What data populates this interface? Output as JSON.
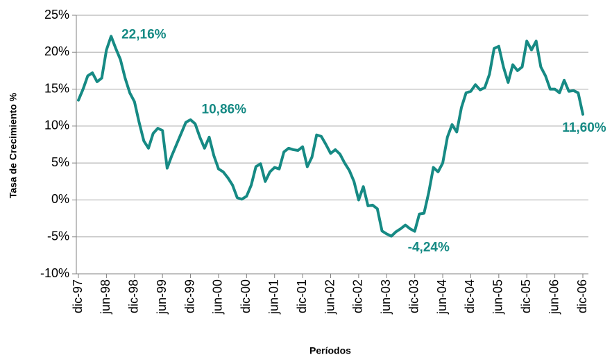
{
  "chart_data": {
    "type": "line",
    "y_label": "Tasa de Crecimiento %",
    "x_label": "Períodos",
    "categories": [
      "dic-97",
      null,
      null,
      null,
      null,
      null,
      "jun-98",
      null,
      null,
      null,
      null,
      null,
      "dic-98",
      null,
      null,
      null,
      null,
      null,
      "jun-99",
      null,
      null,
      null,
      null,
      null,
      "dic-99",
      null,
      null,
      null,
      null,
      null,
      "jun-00",
      null,
      null,
      null,
      null,
      null,
      "dic-00",
      null,
      null,
      null,
      null,
      null,
      "jun-01",
      null,
      null,
      null,
      null,
      null,
      "dic-01",
      null,
      null,
      null,
      null,
      null,
      "jun-02",
      null,
      null,
      null,
      null,
      null,
      "dic-02",
      null,
      null,
      null,
      null,
      null,
      "jun-03",
      null,
      null,
      null,
      null,
      null,
      "dic-03",
      null,
      null,
      null,
      null,
      null,
      "jun-04",
      null,
      null,
      null,
      null,
      null,
      "dic-04",
      null,
      null,
      null,
      null,
      null,
      "jun-05",
      null,
      null,
      null,
      null,
      null,
      "dic-05",
      null,
      null,
      null,
      null,
      null,
      "jun-06",
      null,
      null,
      null,
      null,
      null,
      "dic-06"
    ],
    "series": [
      {
        "color": "#168a84",
        "values": [
          13.5,
          15,
          16.8,
          17.2,
          16,
          16.5,
          20.3,
          22.16,
          20.5,
          19,
          16.5,
          14.5,
          13.3,
          10.5,
          8,
          7,
          9,
          9.7,
          9.4,
          4.3,
          6,
          7.5,
          9,
          10.5,
          10.86,
          10.3,
          8.5,
          7,
          8.5,
          6,
          4.2,
          3.8,
          3,
          2,
          0.3,
          0.1,
          0.5,
          2,
          4.5,
          4.9,
          2.5,
          3.8,
          4.4,
          4.2,
          6.5,
          7,
          6.8,
          6.7,
          7.2,
          4.5,
          5.8,
          8.8,
          8.6,
          7.5,
          6.3,
          6.8,
          6.2,
          5,
          4,
          2.5,
          0,
          1.8,
          -0.8,
          -0.7,
          -1.2,
          -4.2,
          -4.6,
          -4.9,
          -4.3,
          -3.9,
          -3.4,
          -3.9,
          -4.24,
          -1.9,
          -1.8,
          1,
          4.4,
          3.8,
          5,
          8.5,
          10.2,
          9.2,
          12.5,
          14.5,
          14.7,
          15.6,
          14.9,
          15.2,
          17,
          20.5,
          20.8,
          18,
          15.9,
          18.3,
          17.5,
          18,
          21.5,
          20.3,
          21.5,
          18,
          16.8,
          15,
          15,
          14.5,
          16.2,
          14.7,
          14.8,
          14.5,
          11.6
        ],
        "value_labels": [
          null,
          null,
          null,
          null,
          null,
          null,
          null,
          "22,16%",
          null,
          null,
          null,
          null,
          null,
          null,
          null,
          null,
          null,
          null,
          null,
          null,
          null,
          null,
          null,
          null,
          "10,86%",
          null,
          null,
          null,
          null,
          null,
          null,
          null,
          null,
          null,
          null,
          null,
          null,
          null,
          null,
          null,
          null,
          null,
          null,
          null,
          null,
          null,
          null,
          null,
          null,
          null,
          null,
          null,
          null,
          null,
          null,
          null,
          null,
          null,
          null,
          null,
          null,
          null,
          null,
          null,
          null,
          null,
          null,
          null,
          null,
          null,
          null,
          null,
          "-4,24%",
          null,
          null,
          null,
          null,
          null,
          null,
          null,
          null,
          null,
          null,
          null,
          null,
          null,
          null,
          null,
          null,
          null,
          null,
          null,
          null,
          null,
          null,
          null,
          null,
          null,
          null,
          null,
          null,
          null,
          null,
          null,
          null,
          null,
          null,
          null,
          "11,60%"
        ]
      }
    ],
    "ylim": [
      -10,
      25
    ],
    "yticks": [
      {
        "value": -10,
        "label": "-10%"
      },
      {
        "value": -5,
        "label": "-5%"
      },
      {
        "value": 0,
        "label": "0%"
      },
      {
        "value": 5,
        "label": "5%"
      },
      {
        "value": 10,
        "label": "10%"
      },
      {
        "value": 15,
        "label": "15%"
      },
      {
        "value": 20,
        "label": "20%"
      },
      {
        "value": 25,
        "label": "25%"
      }
    ],
    "grid": true
  }
}
